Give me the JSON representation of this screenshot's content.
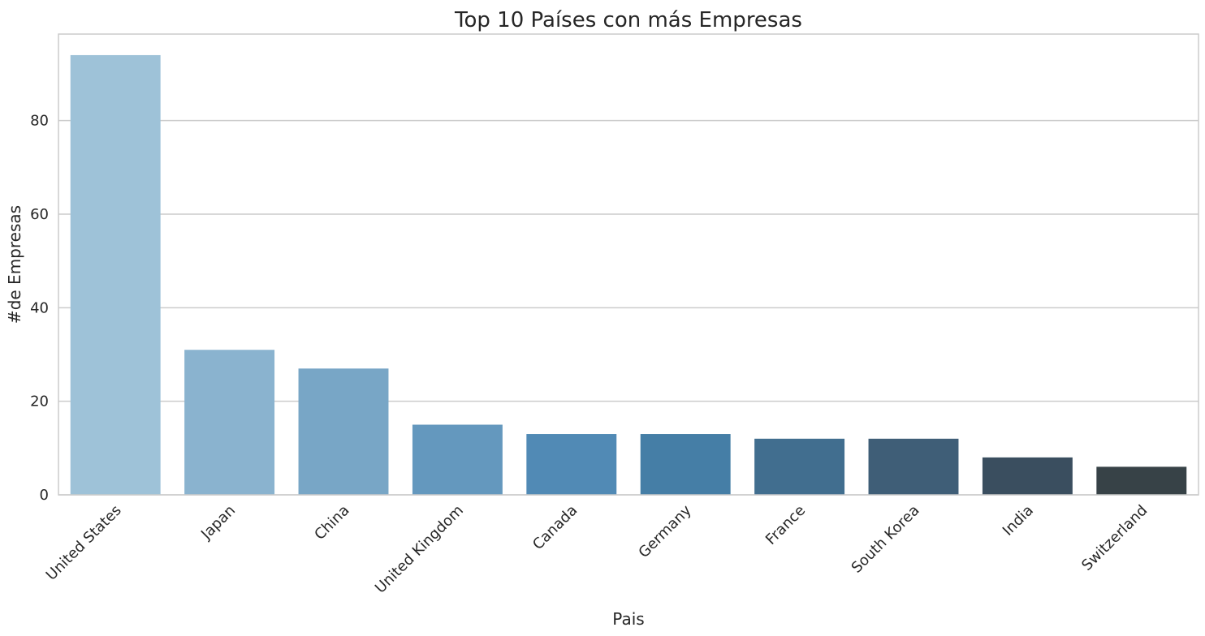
{
  "chart_data": {
    "type": "bar",
    "title": "Top 10 Países con más Empresas",
    "xlabel": "Pais",
    "ylabel": "#de Empresas",
    "categories": [
      "United States",
      "Japan",
      "China",
      "United Kingdom",
      "Canada",
      "Germany",
      "France",
      "South Korea",
      "India",
      "Switzerland"
    ],
    "values": [
      94,
      31,
      27,
      15,
      13,
      13,
      12,
      12,
      8,
      6
    ],
    "ylim": [
      0,
      98.5
    ],
    "yticks": [
      0,
      20,
      40,
      60,
      80
    ],
    "grid": "horizontal",
    "bar_colors": [
      "#9ec2d8",
      "#8ab3cf",
      "#78a6c6",
      "#6498be",
      "#518ab5",
      "#457ea6",
      "#416e8f",
      "#3f5e77",
      "#3a4e5f",
      "#374247"
    ],
    "gridline_color": "#cccccc",
    "frame_color": "#cccccc"
  }
}
